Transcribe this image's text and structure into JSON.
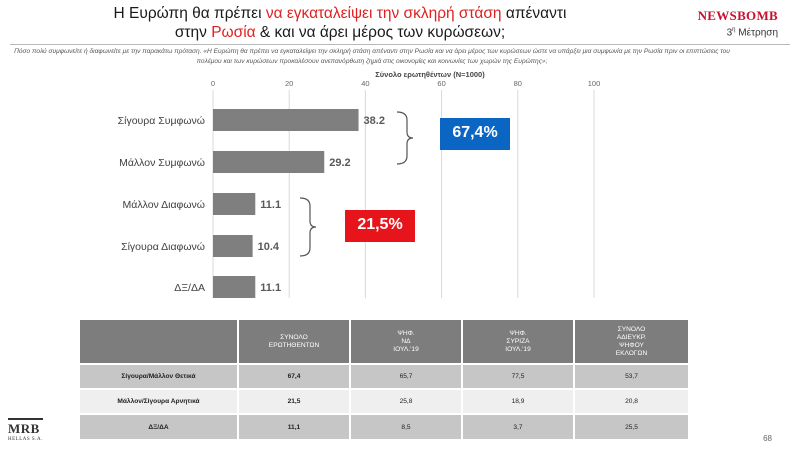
{
  "header": {
    "title_part1": "Η Ευρώπη θα πρέπει ",
    "title_red1": "να εγκαταλείψει την σκληρή στάση",
    "title_part2": " απέναντι",
    "title_part3": "στην ",
    "title_red2": "Ρωσία",
    "title_part4": " & και να άρει μέρος των κυρώσεων;",
    "logo": "NEWSBOMB",
    "measurement_prefix": "3",
    "measurement_sup": "η",
    "measurement_suffix": " Μέτρηση"
  },
  "question": "Πόσο πολύ συμφωνείτε ή διαφωνείτε με την παρακάτω πρόταση. «Η Ευρώπη θα πρέπει να εγκαταλείψει την σκληρή στάση απέναντι στην Ρωσία και να άρει μέρος των κυρώσεων ώστε να υπάρξει μια συμφωνία με την Ρωσία πριν οι επιπτώσεις του πολέμου και των κυρώσεων προκαλέσουν ανεπανόρθωτη ζημιά στις οικονομίες και κοινωνίες των χωρών της Ευρώπης»;",
  "chart_data": {
    "type": "bar",
    "orientation": "horizontal",
    "title": "Σύνολο ερωτηθέντων (N=1000)",
    "categories": [
      "Σίγουρα Συμφωνώ",
      "Μάλλον Συμφωνώ",
      "Μάλλον Διαφωνώ",
      "Σίγουρα Διαφωνώ",
      "ΔΞ/ΔΑ"
    ],
    "values": [
      38.2,
      29.2,
      11.1,
      10.4,
      11.1
    ],
    "value_labels": [
      "38.2",
      "29.2",
      "11.1",
      "10.4",
      "11.1"
    ],
    "xlim": [
      0,
      100
    ],
    "ticks": [
      0,
      20,
      40,
      60,
      80,
      100
    ],
    "grid": true,
    "bar_color": "#7f7f7f",
    "annotations": [
      {
        "label": "67,4%",
        "color": "#0a66c2",
        "groups": [
          0,
          1
        ]
      },
      {
        "label": "21,5%",
        "color": "#e8141b",
        "groups": [
          2,
          3
        ]
      }
    ]
  },
  "table": {
    "headers": [
      "",
      "ΣΥΝΟΛΟ\nΕΡΩΤΗΘΕΝΤΩΝ",
      "ΨΗΦ.\nΝΔ\nΙΟΥΛ.'19",
      "ΨΗΦ.\nΣΥΡΙΖΑ\nΙΟΥΛ.'19",
      "ΣΥΝΟΛΟ\nΑΔΙΕΥΚΡ.\nΨΗΦΟΥ\nΕΚΛΟΓΩΝ"
    ],
    "rows": [
      [
        "Σίγουρα/Μάλλον   Θετικά",
        "67,4",
        "65,7",
        "77,5",
        "53,7"
      ],
      [
        "Μάλλον/Σίγουρα   Αρνητικά",
        "21,5",
        "25,8",
        "18,9",
        "20,8"
      ],
      [
        "ΔΞ/ΔΑ",
        "11,1",
        "8,5",
        "3,7",
        "25,5"
      ]
    ]
  },
  "footer": {
    "mrb_logo": "MRB",
    "mrb_sub": "HELLAS S.A.",
    "page_number": "68"
  }
}
